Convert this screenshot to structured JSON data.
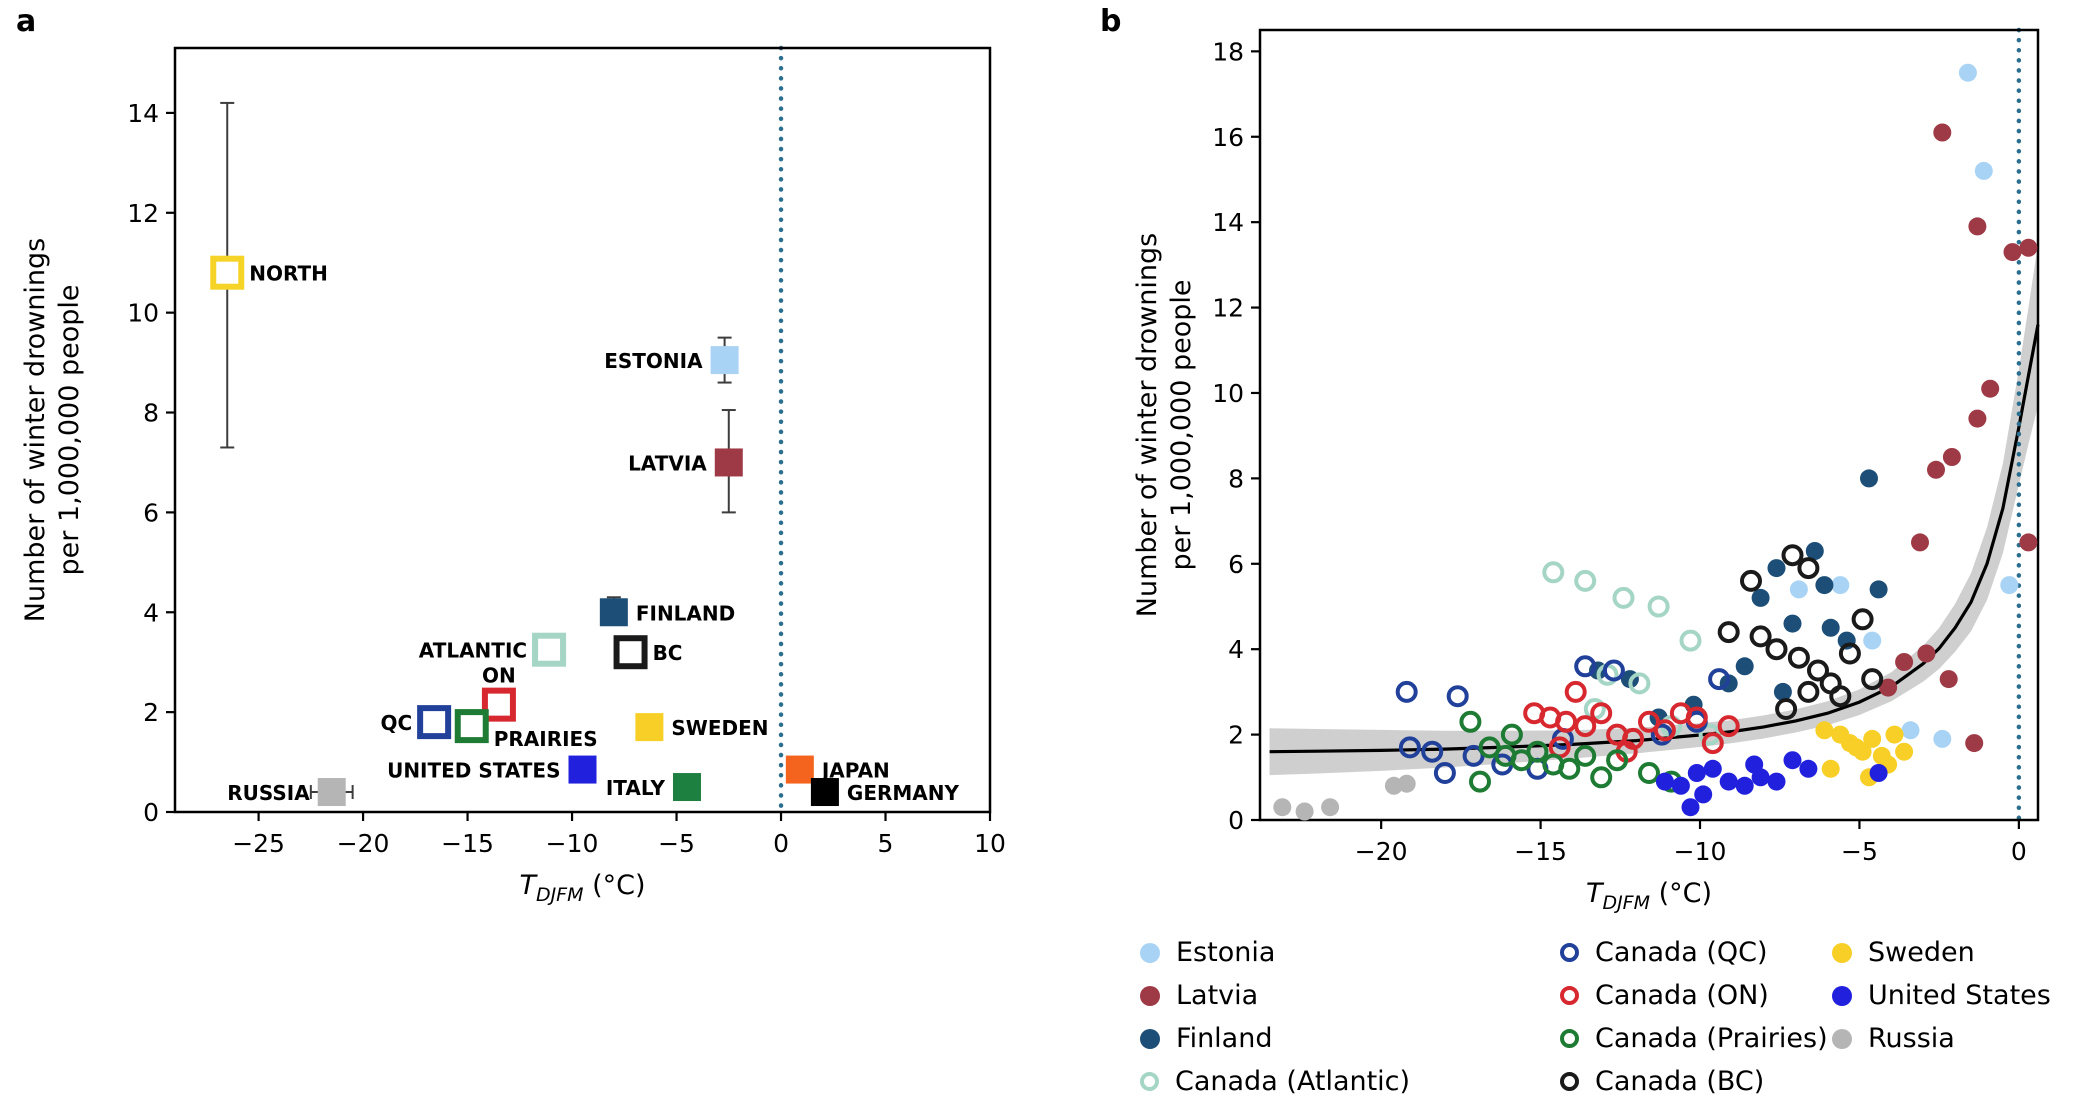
{
  "chart_data": [
    {
      "panel_label": "a",
      "type": "scatter",
      "xlabel": {
        "pre": "T",
        "sub": "DJFM",
        "post": " (°C)"
      },
      "ylabel_lines": [
        "Number of winter drownings",
        "per 1,000,000 people"
      ],
      "xlim": [
        -29,
        10
      ],
      "ylim": [
        0,
        15.3
      ],
      "xticks": [
        -25,
        -20,
        -15,
        -10,
        -5,
        0,
        5,
        10
      ],
      "yticks": [
        0,
        2,
        4,
        6,
        8,
        10,
        12,
        14
      ],
      "grid": false,
      "vline_x": 0,
      "vline_color": "#2b6e8e",
      "points": [
        {
          "name": "NORTH",
          "x": -26.5,
          "y": 10.8,
          "ylo": 7.3,
          "yhi": 14.2,
          "color": "#f5d427",
          "filled": false,
          "side": "right"
        },
        {
          "name": "ESTONIA",
          "x": -2.7,
          "y": 9.05,
          "ylo": 8.6,
          "yhi": 9.5,
          "color": "#a9d3f5",
          "filled": true,
          "side": "left"
        },
        {
          "name": "LATVIA",
          "x": -2.5,
          "y": 7.0,
          "ylo": 6.0,
          "yhi": 8.05,
          "color": "#9e3a45",
          "filled": true,
          "side": "left"
        },
        {
          "name": "FINLAND",
          "x": -8.0,
          "y": 4.0,
          "ylo": 3.75,
          "yhi": 4.3,
          "color": "#1d4e77",
          "filled": true,
          "side": "right"
        },
        {
          "name": "ATLANTIC",
          "x": -11.1,
          "y": 3.25,
          "ylo": 3.0,
          "yhi": 3.5,
          "color": "#a5d5c5",
          "filled": false,
          "side": "left"
        },
        {
          "name": "BC",
          "x": -7.2,
          "y": 3.2,
          "ylo": 3.0,
          "yhi": 3.4,
          "color": "#1a1a1a",
          "filled": false,
          "side": "right"
        },
        {
          "name": "ON",
          "x": -13.5,
          "y": 2.15,
          "ylo": 1.95,
          "yhi": 2.35,
          "color": "#d7282f",
          "filled": false,
          "side": "above"
        },
        {
          "name": "QC",
          "x": -16.6,
          "y": 1.8,
          "ylo": 1.6,
          "yhi": 2.0,
          "color": "#20409a",
          "filled": false,
          "side": "left"
        },
        {
          "name": "PRAIRIES",
          "x": -14.8,
          "y": 1.72,
          "ylo": 1.55,
          "yhi": 1.9,
          "color": "#1e7b33",
          "filled": false,
          "side": "right",
          "ldy": 12
        },
        {
          "name": "SWEDEN",
          "x": -6.3,
          "y": 1.7,
          "ylo": 1.55,
          "yhi": 1.85,
          "color": "#f8cf27",
          "filled": true,
          "side": "right"
        },
        {
          "name": "UNITED STATES",
          "x": -9.5,
          "y": 0.85,
          "ylo": 0.72,
          "yhi": 0.98,
          "color": "#2121dd",
          "filled": true,
          "side": "left"
        },
        {
          "name": "ITALY",
          "x": -4.5,
          "y": 0.5,
          "ylo": 0.38,
          "yhi": 0.62,
          "color": "#1e8040",
          "filled": true,
          "side": "left"
        },
        {
          "name": "JAPAN",
          "x": 0.9,
          "y": 0.85,
          "ylo": 0.7,
          "yhi": 1.0,
          "color": "#f4641e",
          "filled": true,
          "side": "right"
        },
        {
          "name": "GERMANY",
          "x": 2.1,
          "y": 0.4,
          "ylo": 0.3,
          "yhi": 0.5,
          "color": "#000000",
          "filled": true,
          "side": "right"
        },
        {
          "name": "RUSSIA",
          "x": -21.5,
          "y": 0.4,
          "ylo": 0.3,
          "yhi": 0.5,
          "xlo": -22.5,
          "xhi": -20.5,
          "color": "#b5b5b5",
          "filled": true,
          "side": "left"
        }
      ]
    },
    {
      "panel_label": "b",
      "type": "scatter",
      "xlabel": {
        "pre": "T",
        "sub": "DJFM",
        "post": " (°C)"
      },
      "ylabel_lines": [
        "Number of winter drownings",
        "per 1,000,000 people"
      ],
      "xlim": [
        -23.8,
        0.6
      ],
      "ylim": [
        0,
        18.5
      ],
      "xticks": [
        -20,
        -15,
        -10,
        -5,
        0
      ],
      "yticks": [
        0,
        2,
        4,
        6,
        8,
        10,
        12,
        14,
        16,
        18
      ],
      "grid": false,
      "vline_x": 0,
      "vline_color": "#2b6e8e",
      "fit_curve": {
        "color": "#000000",
        "band_color": "#c3c3c3",
        "x": [
          -23.5,
          -22,
          -20,
          -18,
          -16,
          -14,
          -12,
          -10,
          -9,
          -8,
          -7,
          -6,
          -5,
          -4,
          -3,
          -2.5,
          -2,
          -1.5,
          -1,
          -0.5,
          0,
          0.3,
          0.6
        ],
        "y": [
          1.6,
          1.61,
          1.63,
          1.66,
          1.71,
          1.77,
          1.86,
          1.99,
          2.07,
          2.18,
          2.32,
          2.5,
          2.76,
          3.12,
          3.66,
          4.02,
          4.5,
          5.1,
          6.0,
          7.3,
          9.2,
          10.4,
          11.6
        ],
        "band_halfwidth": [
          0.55,
          0.52,
          0.48,
          0.43,
          0.38,
          0.33,
          0.3,
          0.28,
          0.27,
          0.27,
          0.27,
          0.28,
          0.3,
          0.34,
          0.42,
          0.48,
          0.56,
          0.68,
          0.85,
          1.05,
          1.35,
          1.6,
          1.9
        ]
      },
      "series": [
        {
          "name": "Estonia",
          "color": "#a9d3f5",
          "filled": true,
          "points": [
            [
              -1.6,
              17.5
            ],
            [
              -1.1,
              15.2
            ],
            [
              -0.3,
              5.5
            ],
            [
              -5.6,
              5.5
            ],
            [
              -6.9,
              5.4
            ],
            [
              -4.6,
              4.2
            ],
            [
              -3.4,
              2.1
            ],
            [
              -2.4,
              1.9
            ]
          ]
        },
        {
          "name": "Latvia",
          "color": "#9e3a45",
          "filled": true,
          "points": [
            [
              -2.4,
              16.1
            ],
            [
              -1.3,
              13.9
            ],
            [
              -0.2,
              13.3
            ],
            [
              0.3,
              13.4
            ],
            [
              -0.9,
              10.1
            ],
            [
              -1.3,
              9.4
            ],
            [
              -2.1,
              8.5
            ],
            [
              -2.6,
              8.2
            ],
            [
              -3.1,
              6.5
            ],
            [
              0.3,
              6.5
            ],
            [
              -2.9,
              3.9
            ],
            [
              -3.6,
              3.7
            ],
            [
              -2.2,
              3.3
            ],
            [
              -4.1,
              3.1
            ],
            [
              -1.4,
              1.8
            ]
          ]
        },
        {
          "name": "Finland",
          "color": "#1d4e77",
          "filled": true,
          "points": [
            [
              -4.7,
              8.0
            ],
            [
              -6.4,
              6.3
            ],
            [
              -7.6,
              5.9
            ],
            [
              -6.1,
              5.5
            ],
            [
              -4.4,
              5.4
            ],
            [
              -8.1,
              5.2
            ],
            [
              -7.1,
              4.6
            ],
            [
              -5.9,
              4.5
            ],
            [
              -5.4,
              4.2
            ],
            [
              -8.6,
              3.6
            ],
            [
              -9.1,
              3.2
            ],
            [
              -7.4,
              3.0
            ],
            [
              -10.2,
              2.7
            ],
            [
              -11.3,
              2.4
            ],
            [
              -12.2,
              3.3
            ],
            [
              -13.2,
              3.5
            ]
          ]
        },
        {
          "name": "Canada (Atlantic)",
          "color": "#a5d5c5",
          "filled": false,
          "points": [
            [
              -14.6,
              5.8
            ],
            [
              -13.6,
              5.6
            ],
            [
              -12.4,
              5.2
            ],
            [
              -11.3,
              5.0
            ],
            [
              -10.3,
              4.2
            ],
            [
              -12.9,
              3.4
            ],
            [
              -11.9,
              3.2
            ],
            [
              -13.3,
              2.6
            ],
            [
              -10.9,
              2.2
            ],
            [
              -9.7,
              2.0
            ]
          ]
        },
        {
          "name": "Canada (QC)",
          "color": "#20409a",
          "filled": false,
          "points": [
            [
              -19.2,
              3.0
            ],
            [
              -17.6,
              2.9
            ],
            [
              -13.6,
              3.6
            ],
            [
              -12.7,
              3.5
            ],
            [
              -19.1,
              1.7
            ],
            [
              -18.4,
              1.6
            ],
            [
              -17.1,
              1.5
            ],
            [
              -16.2,
              1.3
            ],
            [
              -15.1,
              1.2
            ],
            [
              -11.2,
              2.0
            ],
            [
              -10.1,
              2.3
            ],
            [
              -9.4,
              3.3
            ],
            [
              -18.0,
              1.1
            ],
            [
              -14.3,
              1.9
            ]
          ]
        },
        {
          "name": "Canada (ON)",
          "color": "#d7282f",
          "filled": false,
          "points": [
            [
              -15.2,
              2.5
            ],
            [
              -14.7,
              2.4
            ],
            [
              -14.2,
              2.3
            ],
            [
              -13.6,
              2.2
            ],
            [
              -13.1,
              2.5
            ],
            [
              -12.6,
              2.0
            ],
            [
              -12.1,
              1.9
            ],
            [
              -11.6,
              2.3
            ],
            [
              -11.1,
              2.1
            ],
            [
              -10.6,
              2.5
            ],
            [
              -10.1,
              2.4
            ],
            [
              -13.9,
              3.0
            ],
            [
              -9.6,
              1.8
            ],
            [
              -9.1,
              2.2
            ],
            [
              -14.4,
              1.7
            ],
            [
              -12.3,
              1.6
            ]
          ]
        },
        {
          "name": "Canada (Prairies)",
          "color": "#1e7b33",
          "filled": false,
          "points": [
            [
              -17.2,
              2.3
            ],
            [
              -16.6,
              1.7
            ],
            [
              -16.1,
              1.5
            ],
            [
              -15.6,
              1.4
            ],
            [
              -15.1,
              1.6
            ],
            [
              -14.6,
              1.3
            ],
            [
              -14.1,
              1.2
            ],
            [
              -13.6,
              1.5
            ],
            [
              -13.1,
              1.0
            ],
            [
              -12.6,
              1.4
            ],
            [
              -16.9,
              0.9
            ],
            [
              -11.6,
              1.1
            ],
            [
              -10.9,
              0.9
            ],
            [
              -15.9,
              2.0
            ]
          ]
        },
        {
          "name": "Canada (BC)",
          "color": "#1a1a1a",
          "filled": false,
          "points": [
            [
              -8.4,
              5.6
            ],
            [
              -7.1,
              6.2
            ],
            [
              -6.6,
              5.9
            ],
            [
              -9.1,
              4.4
            ],
            [
              -8.1,
              4.3
            ],
            [
              -7.6,
              4.0
            ],
            [
              -6.9,
              3.8
            ],
            [
              -6.3,
              3.5
            ],
            [
              -5.9,
              3.2
            ],
            [
              -6.6,
              3.0
            ],
            [
              -5.6,
              2.9
            ],
            [
              -7.3,
              2.6
            ],
            [
              -4.9,
              4.7
            ],
            [
              -5.3,
              3.9
            ],
            [
              -4.6,
              3.3
            ]
          ]
        },
        {
          "name": "Sweden",
          "color": "#f8cf27",
          "filled": true,
          "points": [
            [
              -6.1,
              2.1
            ],
            [
              -5.6,
              2.0
            ],
            [
              -5.3,
              1.8
            ],
            [
              -5.1,
              1.7
            ],
            [
              -4.9,
              1.6
            ],
            [
              -4.6,
              1.9
            ],
            [
              -4.3,
              1.5
            ],
            [
              -4.1,
              1.3
            ],
            [
              -5.9,
              1.2
            ],
            [
              -3.9,
              2.0
            ],
            [
              -4.7,
              1.0
            ],
            [
              -3.6,
              1.6
            ]
          ]
        },
        {
          "name": "United States",
          "color": "#2121dd",
          "filled": true,
          "points": [
            [
              -11.1,
              0.9
            ],
            [
              -10.6,
              0.8
            ],
            [
              -10.1,
              1.1
            ],
            [
              -9.9,
              0.6
            ],
            [
              -9.6,
              1.2
            ],
            [
              -9.1,
              0.9
            ],
            [
              -8.6,
              0.8
            ],
            [
              -8.3,
              1.3
            ],
            [
              -8.1,
              1.0
            ],
            [
              -7.6,
              0.9
            ],
            [
              -7.1,
              1.4
            ],
            [
              -10.3,
              0.3
            ],
            [
              -6.6,
              1.2
            ],
            [
              -4.4,
              1.1
            ]
          ]
        },
        {
          "name": "Russia",
          "color": "#b5b5b5",
          "filled": true,
          "points": [
            [
              -23.1,
              0.3
            ],
            [
              -22.4,
              0.2
            ],
            [
              -21.6,
              0.3
            ],
            [
              -19.6,
              0.8
            ],
            [
              -19.2,
              0.85
            ]
          ]
        }
      ]
    }
  ],
  "legend": {
    "columns": [
      [
        "Estonia",
        "Latvia",
        "Finland",
        "Canada (Atlantic)"
      ],
      [
        "Canada (QC)",
        "Canada (ON)",
        "Canada (Prairies)",
        "Canada (BC)"
      ],
      [
        "Sweden",
        "United States",
        "Russia"
      ]
    ]
  }
}
